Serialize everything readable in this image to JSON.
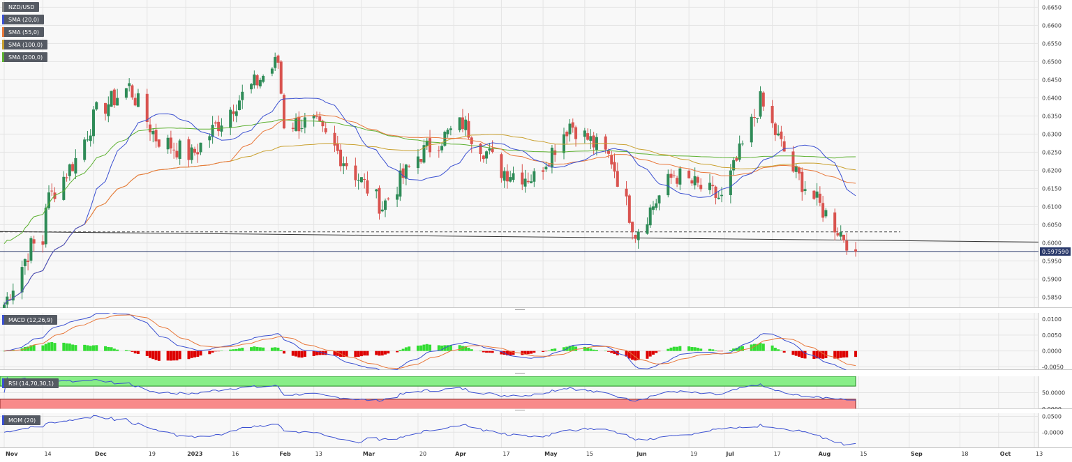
{
  "symbol": "NZD/USD",
  "colors": {
    "up": "#2e8b57",
    "down": "#d9534f",
    "sma20": "#3a4fd1",
    "sma55": "#e8773a",
    "sma100": "#c9a02f",
    "sma200": "#5cb030",
    "macd_pos": "#33dd33",
    "macd_neg": "#dd0000",
    "rsi_line": "#3a4fd1",
    "mom_line": "#3a4fd1"
  },
  "legends": {
    "symbol": "NZD/USD",
    "sma20": "SMA (20,0)",
    "sma55": "SMA (55,0)",
    "sma100": "SMA (100,0)",
    "sma200": "SMA (200,0)",
    "macd": "MACD (12,26,9)",
    "rsi": "RSI (14,70,30,1)",
    "mom": "MOM (20)"
  },
  "price_axis": [
    "0.6650",
    "0.6600",
    "0.6550",
    "0.6500",
    "0.6450",
    "0.6400",
    "0.6350",
    "0.6300",
    "0.6250",
    "0.6200",
    "0.6150",
    "0.6100",
    "0.6050",
    "0.6000",
    "0.5950",
    "0.5900",
    "0.5850"
  ],
  "last_price": "0.597590",
  "macd_axis": [
    "0.0100",
    "0.0050",
    "0.0000",
    "-0.0050"
  ],
  "rsi_axis": [
    "50.0000",
    "0.0000"
  ],
  "mom_axis": [
    "0.0500",
    "-0.0000"
  ],
  "time_axis": [
    "Nov",
    "14",
    "Dec",
    "19",
    "2023",
    "16",
    "Feb",
    "13",
    "Mar",
    "20",
    "Apr",
    "17",
    "May",
    "15",
    "Jun",
    "19",
    "Jul",
    "17",
    "Aug",
    "15",
    "Sep",
    "18",
    "Oct",
    "13"
  ],
  "chart_data": {
    "type": "candlestick",
    "title": "NZD/USD",
    "x_range": [
      "2022-11-01",
      "2023-10-13"
    ],
    "y_range": [
      0.582,
      0.667
    ],
    "last_price": 0.59759,
    "dashed_level": 0.603,
    "sample_closes": [
      {
        "date": "2022-11-01",
        "close": 0.583
      },
      {
        "date": "2022-11-10",
        "close": 0.599
      },
      {
        "date": "2022-11-14",
        "close": 0.6
      },
      {
        "date": "2022-11-15",
        "close": 0.611
      },
      {
        "date": "2022-11-25",
        "close": 0.623
      },
      {
        "date": "2022-12-02",
        "close": 0.636
      },
      {
        "date": "2022-12-13",
        "close": 0.643
      },
      {
        "date": "2022-12-22",
        "close": 0.629
      },
      {
        "date": "2023-01-03",
        "close": 0.624
      },
      {
        "date": "2023-01-18",
        "close": 0.639
      },
      {
        "date": "2023-02-01",
        "close": 0.65
      },
      {
        "date": "2023-02-03",
        "close": 0.633
      },
      {
        "date": "2023-02-13",
        "close": 0.633
      },
      {
        "date": "2023-02-24",
        "close": 0.622
      },
      {
        "date": "2023-03-08",
        "close": 0.61
      },
      {
        "date": "2023-03-20",
        "close": 0.624
      },
      {
        "date": "2023-04-04",
        "close": 0.633
      },
      {
        "date": "2023-04-17",
        "close": 0.62
      },
      {
        "date": "2023-04-28",
        "close": 0.618
      },
      {
        "date": "2023-05-10",
        "close": 0.633
      },
      {
        "date": "2023-05-24",
        "close": 0.623
      },
      {
        "date": "2023-06-01",
        "close": 0.603
      },
      {
        "date": "2023-06-14",
        "close": 0.619
      },
      {
        "date": "2023-06-30",
        "close": 0.612
      },
      {
        "date": "2023-07-13",
        "close": 0.639
      },
      {
        "date": "2023-07-24",
        "close": 0.62
      },
      {
        "date": "2023-08-03",
        "close": 0.609
      },
      {
        "date": "2023-08-14",
        "close": 0.5976
      }
    ],
    "sma": [
      {
        "name": "SMA (20,0)",
        "last": 0.612
      },
      {
        "name": "SMA (55,0)",
        "last": 0.6155
      },
      {
        "name": "SMA (100,0)",
        "last": 0.618
      },
      {
        "name": "SMA (200,0)",
        "last": 0.623
      }
    ],
    "macd": {
      "range": [
        -0.006,
        0.012
      ],
      "last": -0.004
    },
    "rsi": {
      "range": [
        0,
        100
      ],
      "overbought": 70,
      "oversold": 30,
      "last": 28
    },
    "mom": {
      "range": [
        -0.05,
        0.06
      ],
      "last": -0.035
    }
  }
}
